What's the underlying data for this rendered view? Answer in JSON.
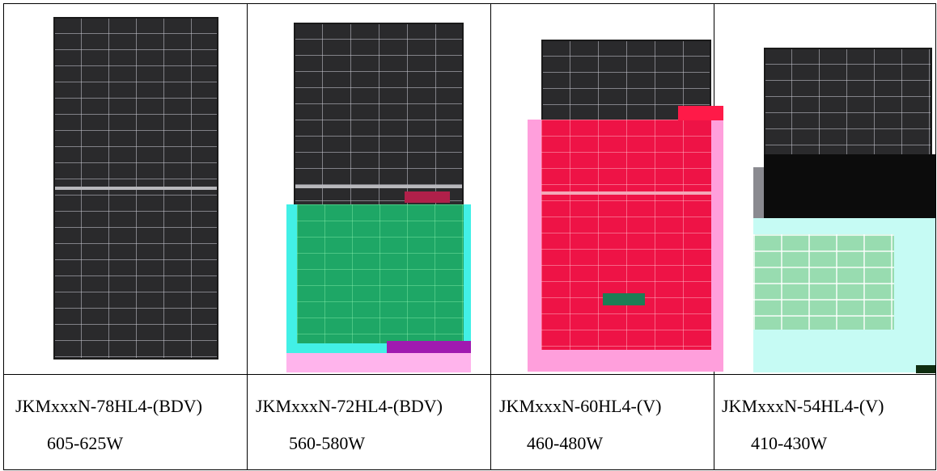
{
  "colors": {
    "panel": "#2a2a2c",
    "cyan_tint": "#42f0e6",
    "red_tint": "#ff1a48",
    "pink_tint": "#ff9fdc",
    "light_cyan": "#c6fbf4"
  },
  "modules": [
    {
      "image_icon": "solar-panel-icon",
      "model": "JKMxxxN-78HL4-(BDV)",
      "power": "605-625W"
    },
    {
      "image_icon": "solar-panel-icon",
      "model": "JKMxxxN-72HL4-(BDV)",
      "power": "560-580W"
    },
    {
      "image_icon": "solar-panel-icon",
      "model": "JKMxxxN-60HL4-(V)",
      "power": "460-480W"
    },
    {
      "image_icon": "solar-panel-icon",
      "model": "JKMxxxN-54HL4-(V)",
      "power": "410-430W"
    }
  ]
}
